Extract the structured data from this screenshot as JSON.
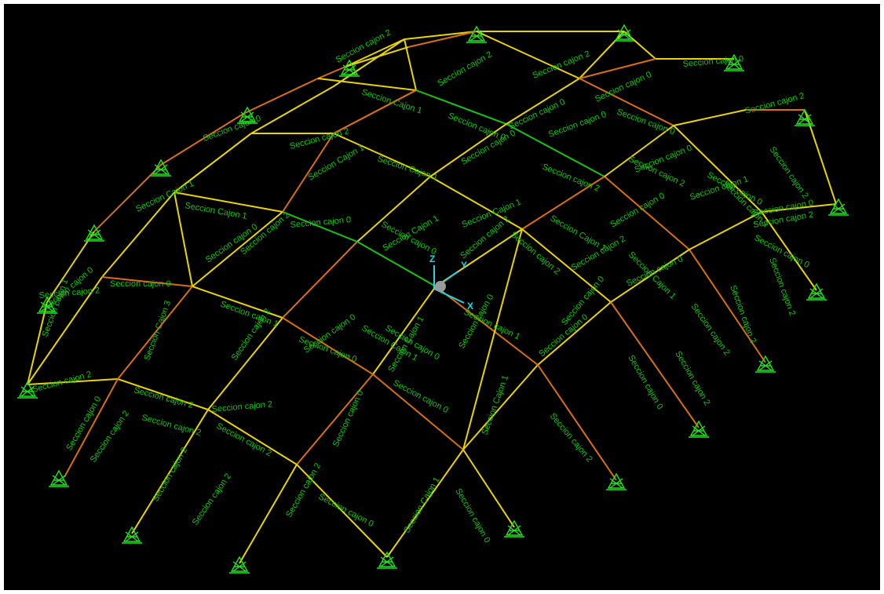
{
  "app": {
    "view": "3-D structural model viewport"
  },
  "colors": {
    "background": "#000000",
    "frame_border": "#ffffff",
    "member_yellow": "#e8d400",
    "member_orange": "#d96f0e",
    "member_green": "#16c60c",
    "label_green": "#0fc80a",
    "support_green": "#1ee61e",
    "axis_cyan": "#1fd6e6"
  },
  "axes": {
    "x_label": "X",
    "y_label": "Y",
    "z_label": "Z"
  },
  "legend_sections": [
    "Seccion cajon 0",
    "Seccion cajon 1",
    "Seccion cajon 2",
    "Seccion cajon 3",
    "Seccion Cajon 1"
  ],
  "labels": [
    "Seccion cajon 2",
    "Seccion cajon 0",
    "Seccion cajon 0",
    "Seccion cajon 2",
    "Seccion cajon 2",
    "Seccion Cajon 1",
    "Seccion cajon 0",
    "Seccion cajon 2",
    "Seccion cajon 0",
    "Seccion cajon 0",
    "Seccion Cajon 1",
    "Seccion cajon 0",
    "Seccion cajon 0",
    "Seccion cajon 2",
    "Seccion cajon 0",
    "Seccion Cajon 1",
    "Seccion cajon 2",
    "Seccion cajon 0",
    "Seccion Cajon 1",
    "Seccion cajon 0",
    "Seccion Cajon 1",
    "Seccion cajon 2",
    "Seccion cajon 1",
    "Seccion cajon 0",
    "Seccion cajon 1",
    "Seccion cajon 0",
    "Seccion cajon 2",
    "Seccion cajon 0",
    "Seccion cajon 0",
    "Seccion Cajon 1",
    "Seccion cajon 0",
    "Seccion cajon 0",
    "Seccion Cajon 1",
    "Seccion cajon 1",
    "Seccion cajon 0",
    "Seccion cajon 2",
    "Seccion cajon 0",
    "Seccion cajon 2",
    "Seccion cajon 2",
    "Seccion cajon 1",
    "Seccion Cajon 1",
    "Seccion cajon 0",
    "Seccion cajon 1",
    "Seccion cajon 0",
    "Seccion cajon 0",
    "Seccion Cajon 1",
    "Seccion cajon 2",
    "Seccion cajon 0",
    "Seccion cajon 2",
    "Seccion cajon 0",
    "Seccion cajon 2",
    "Seccion cajon 0",
    "Seccion cajon 2",
    "Seccion cajon 2",
    "Seccion cajon 2",
    "Seccion cajon 0",
    "Seccion Cajon 3",
    "Seccion Cajon 1",
    "Seccion Cajon 1",
    "Seccion cajon 0",
    "Seccion cajon 2",
    "Seccion cajon 2",
    "Seccion cajon 2",
    "Seccion cajon 0",
    "Seccion Cajon 1",
    "Seccion cajon 0",
    "Seccion cajon 2",
    "Seccion cajon 0",
    "Seccion cajon 2",
    "Seccion cajon 2",
    "Seccion cajon 2",
    "Seccion cajon 2",
    "Seccion Cajon 1",
    "Seccion cajon 0",
    "Seccion cajon 2",
    "Seccion cajon 0",
    "Seccion cajon 2",
    "Seccion cajon 2",
    "Seccion cajon 2"
  ]
}
